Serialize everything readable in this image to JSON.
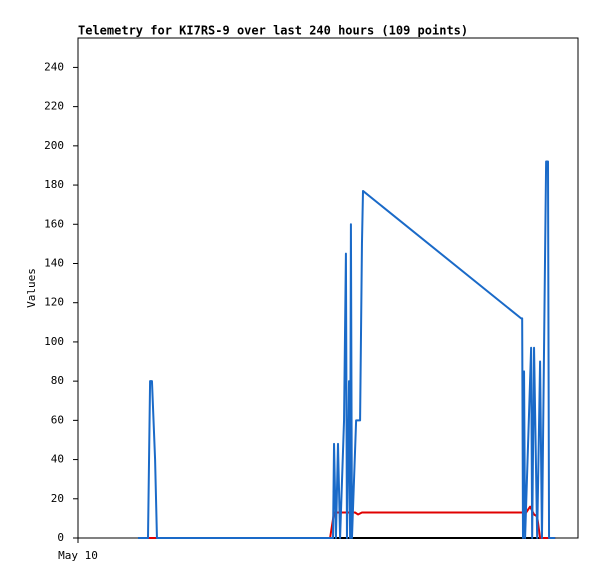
{
  "chart_data": {
    "type": "line",
    "title": "Telemetry for KI7RS-9 over last 240 hours (109 points)",
    "y_label": "Values",
    "xlim": [
      0,
      240
    ],
    "xticks": [
      {
        "value": 0,
        "label": "May 10"
      }
    ],
    "ylim": [
      0,
      255
    ],
    "yticks": [
      0,
      20,
      40,
      60,
      80,
      100,
      120,
      140,
      160,
      180,
      200,
      220,
      240
    ],
    "grid": false,
    "series": [
      {
        "color": "#000000",
        "x": [
          28.8,
          229
        ],
        "values": [
          0,
          0
        ]
      },
      {
        "color": "#e00000",
        "x": [
          28.8,
          121,
          122.9,
          133,
          134.4,
          136.3,
          215.1,
          217,
          218.9,
          220.4,
          221.8,
          229
        ],
        "values": [
          0,
          0,
          13,
          13,
          12,
          13,
          13,
          16,
          12,
          11,
          0,
          0
        ]
      },
      {
        "color": "#1a6ac8",
        "x": [
          28.8,
          33.6,
          34.6,
          35.5,
          37,
          37.9,
          122.4,
          122.9,
          123.8,
          124.8,
          125.8,
          127.7,
          128.6,
          129.1,
          130.1,
          130.6,
          131,
          131.5,
          133.5,
          135.4,
          136.3,
          136.8,
          212.7,
          213.2,
          213.6,
          214.1,
          214.6,
          217.5,
          218,
          218.9,
          220.4,
          221.8,
          222.7,
          224.2,
          224.7,
          225.6,
          226.1,
          229
        ],
        "values": [
          0,
          0,
          80,
          80,
          40,
          0,
          0,
          48,
          0,
          48,
          0,
          60,
          145,
          0,
          80,
          0,
          160,
          0,
          60,
          60,
          150,
          177,
          112,
          112,
          0,
          85,
          0,
          97,
          0,
          97,
          0,
          90,
          0,
          145,
          192,
          192,
          0,
          0
        ]
      }
    ]
  }
}
